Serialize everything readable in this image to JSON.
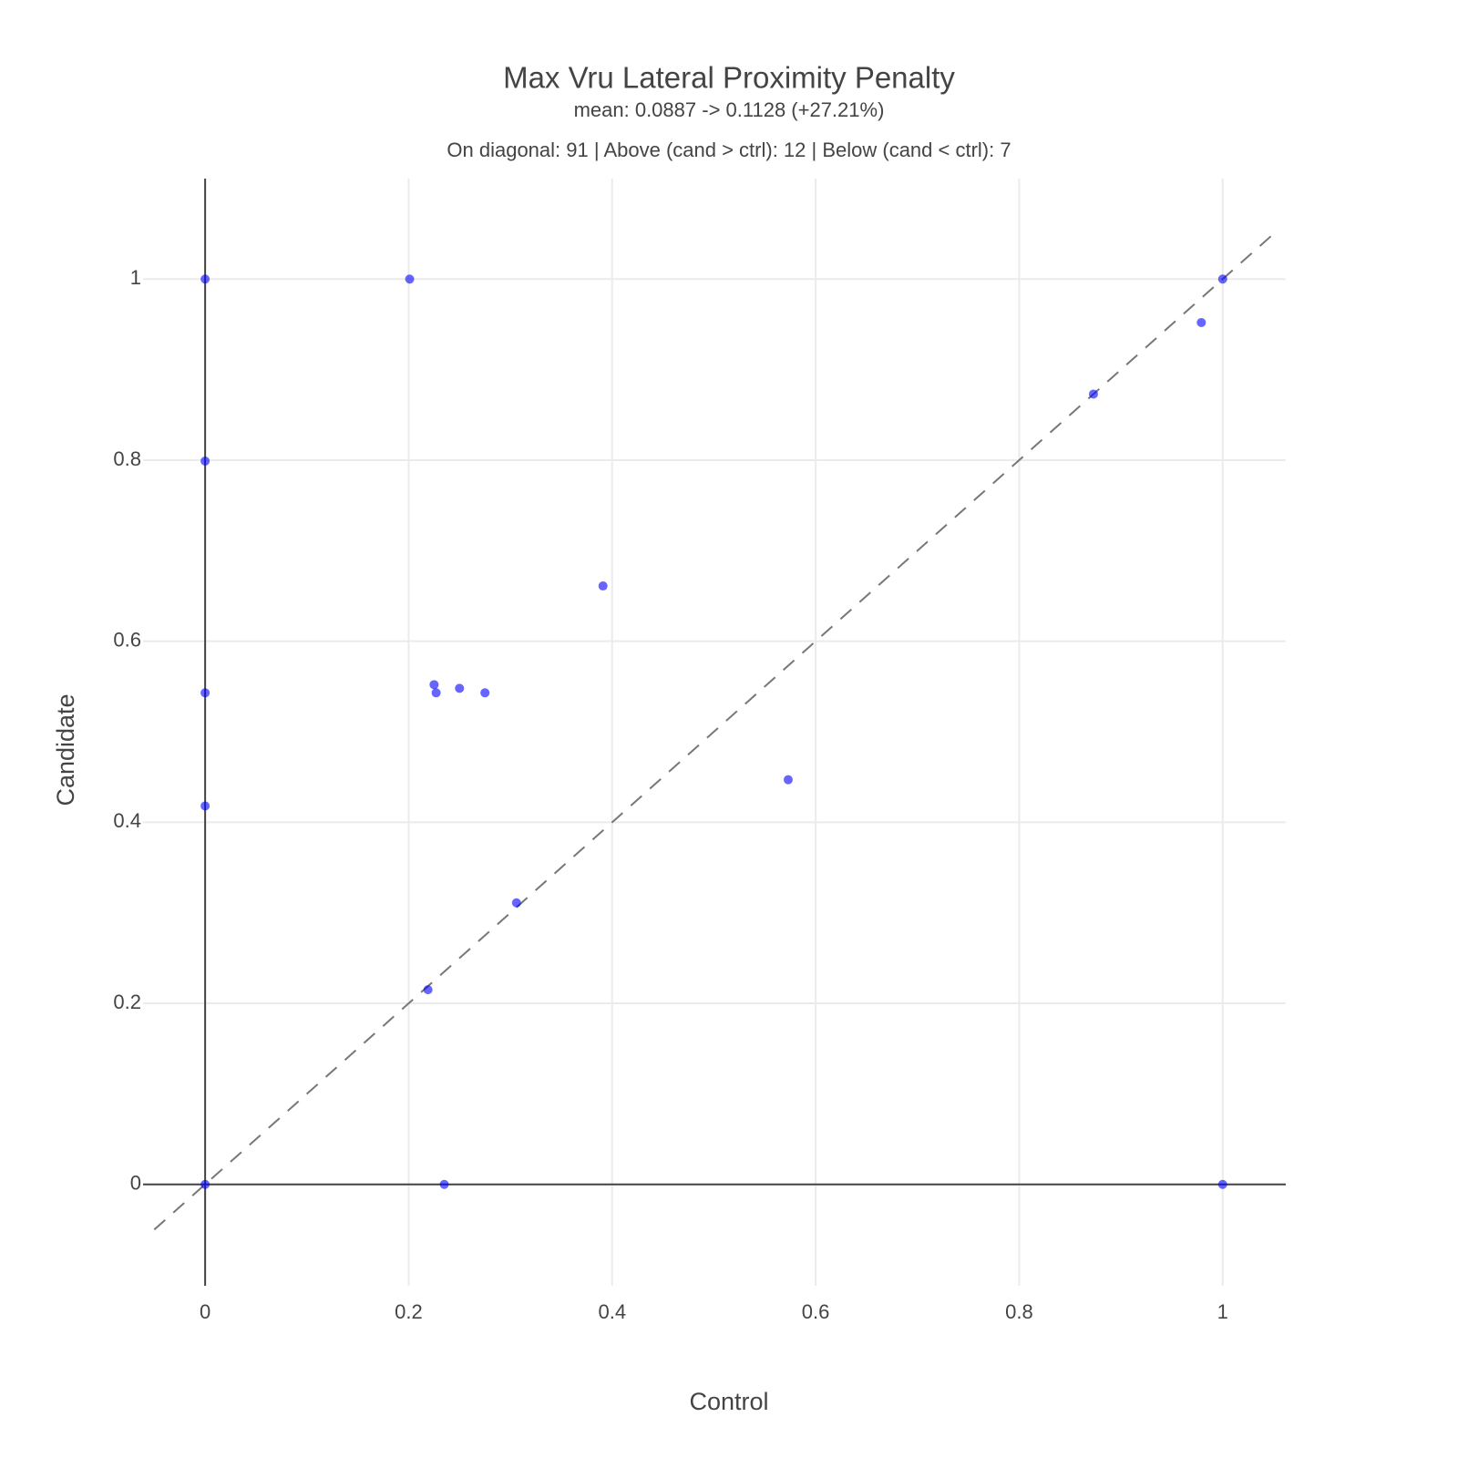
{
  "chart_data": {
    "type": "scatter",
    "title": "Max Vru Lateral Proximity Penalty",
    "subtitle": "mean: 0.0887 -> 0.1128 (+27.21%)",
    "annotation": "On diagonal: 91 | Above (cand > ctrl): 12 | Below (cand < ctrl): 7",
    "x_label": "Control",
    "y_label": "Candidate",
    "x": [
      0,
      0.201,
      1,
      0.979,
      0.873,
      0,
      0.391,
      0.225,
      0.227,
      0.25,
      0.275,
      0,
      0.573,
      0,
      0.306,
      0.219,
      0,
      0.235,
      1
    ],
    "values": [
      1,
      1,
      1,
      0.952,
      0.873,
      0.799,
      0.661,
      0.552,
      0.543,
      0.548,
      0.543,
      0.543,
      0.447,
      0.418,
      0.311,
      0.215,
      0,
      0,
      0
    ],
    "color": "rgba(0,0,255,0.6)",
    "xlim": [
      -0.061,
      1.062
    ],
    "ylim": [
      -0.112,
      1.111
    ],
    "xticks": [
      0,
      0.2,
      0.4,
      0.6,
      0.8,
      1
    ],
    "yticks": [
      0,
      0.2,
      0.4,
      0.6,
      0.8,
      1
    ],
    "grid": true,
    "reference_line": {
      "x": [
        -0.05,
        1.05
      ],
      "y": [
        -0.05,
        1.05
      ],
      "color": "#777",
      "dash": true
    }
  }
}
